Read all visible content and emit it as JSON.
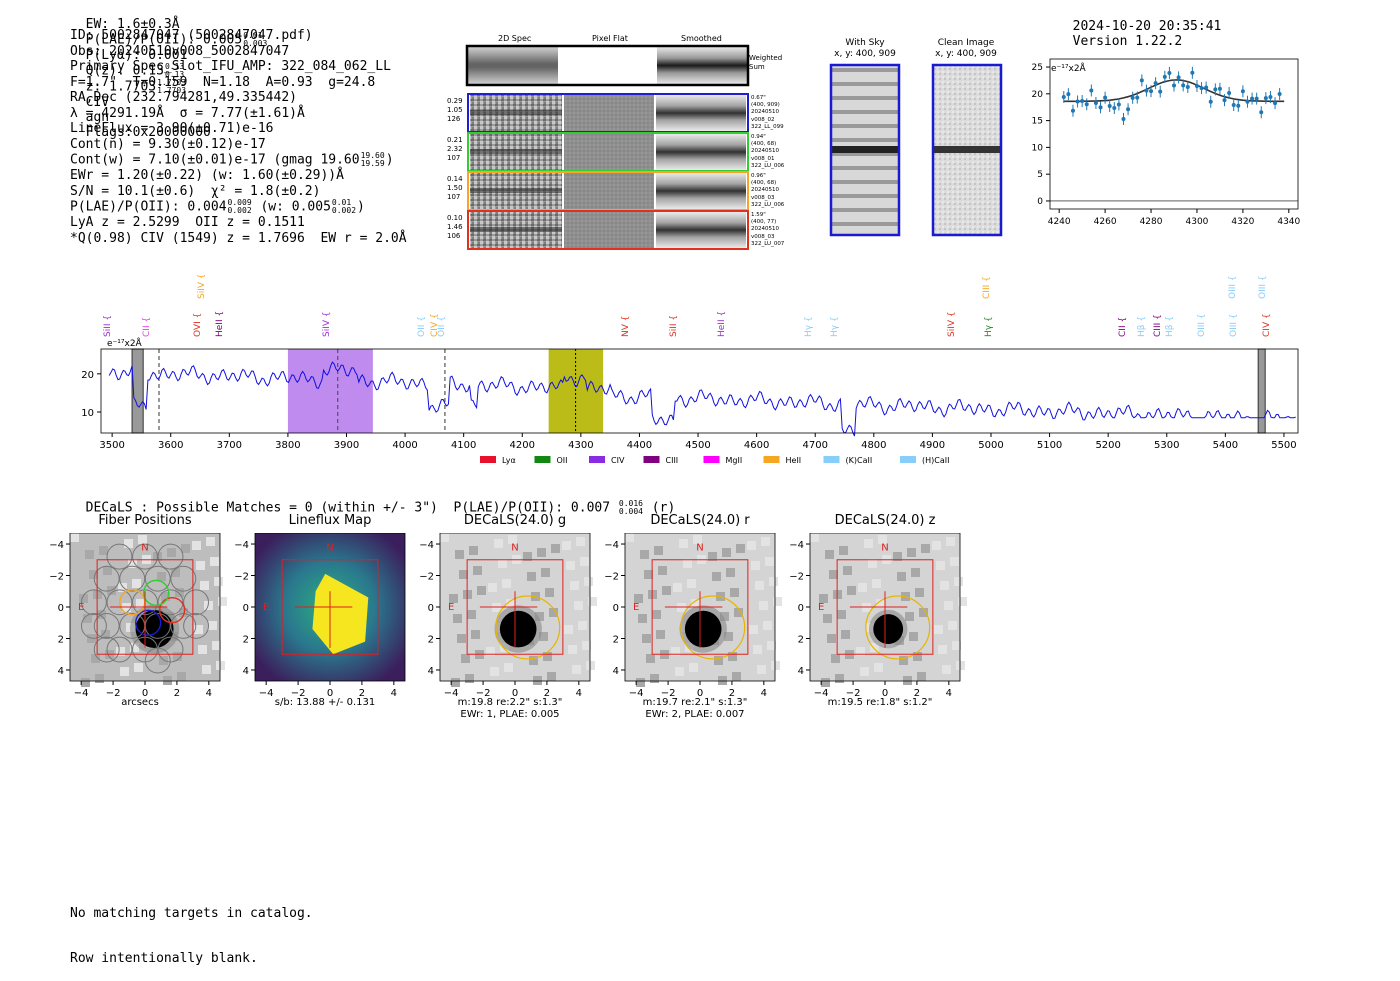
{
  "header": {
    "ew": "EW: 1.6±0.3Å",
    "plae_label": "P(LAE)/P(OII): 0.005",
    "plae_hi": "0.01",
    "plae_lo": "0.003",
    "plya": "P(Lyα): 0.001",
    "q_label": "Q(z): 0.13",
    "q_hi": "0.13",
    "q_lo": "0.13",
    "z_label": "z: 1.7703",
    "z_hi": "1.7703",
    "z_lo": "1.7703",
    "line": "CIV",
    "cls": "agn",
    "flags": "Flags:0x20000000",
    "datetime": "2024-10-20 20:35:41",
    "version": "Version 1.22.2"
  },
  "info": {
    "id": "ID: 5002847047 (5002847047.pdf)",
    "obs": "Obs: 20240510v008_5002847047",
    "slot": "Primary Spec_Slot_IFU_AMP: 322_084_062_LL",
    "params": "F=1.7\"  T=0.159  N=1.18  A=0.93  g=24.8",
    "radec": "RA,Dec (232.794281,49.335442)",
    "lambda": "λ = 4291.19Å  σ = 7.77(±1.61)Å",
    "lineflux": "LineFlux = 3.90(±0.71)e-16",
    "contn": "Cont(n) = 9.30(±0.12)e-17",
    "contw": "Cont(w) = 7.10(±0.01)e-17 (gmag 19.60",
    "contw_hi": "19.60",
    "contw_lo": "19.59",
    "contw_end": ")",
    "ewr": "EWr = 1.20(±0.22) (w: 1.60(±0.29))Å",
    "sn": "S/N = 10.1(±0.6)  χ² = 1.8(±0.2)",
    "plae2": "P(LAE)/P(OII): 0.004",
    "plae2_hi": "0.009",
    "plae2_lo": "0.002",
    "plae2_w": "(w: 0.005",
    "plae2_w_hi": "0.01",
    "plae2_w_lo": "0.002",
    "plae2_end": ")",
    "lya": "LyA z = 2.5299  OII z = 0.1511",
    "q": "*Q(0.98) CIV (1549) z = 1.7696  EW r = 2.0Å"
  },
  "stamps": {
    "col_titles": [
      "2D Spec",
      "Pixel Flat",
      "Smoothed"
    ],
    "weighted": "Weighted Sum",
    "rows": [
      {
        "left": [
          "0.29",
          "1.05",
          "126"
        ],
        "right": [
          "0.67\"",
          "(400, 909)",
          "20240510",
          "v008_02",
          "322_LL_099"
        ],
        "color": "#1f1fd0"
      },
      {
        "left": [
          "0.21",
          "2.32",
          "107"
        ],
        "right": [
          "0.94\"",
          "(400, 68)",
          "20240510",
          "v008_01",
          "322_LU_006"
        ],
        "color": "#33cc33"
      },
      {
        "left": [
          "0.14",
          "1.50",
          "107"
        ],
        "right": [
          "0.96\"",
          "(400, 68)",
          "20240510",
          "v008_03",
          "322_LU_006"
        ],
        "color": "#f5a623"
      },
      {
        "left": [
          "0.10",
          "1.46",
          "106"
        ],
        "right": [
          "1.59\"",
          "(400, 77)",
          "20240510",
          "v008_03",
          "322_LU_007"
        ],
        "color": "#e0301e"
      }
    ]
  },
  "sky": {
    "with_sky": "With Sky",
    "with_sky_xy": "x, y: 400, 909",
    "clean": "Clean Image",
    "clean_xy": "x, y: 400, 909"
  },
  "zoom_plot": {
    "unit": "e⁻¹⁷x2Å",
    "xticks": [
      "4240",
      "4260",
      "4280",
      "4300",
      "4320",
      "4340"
    ],
    "yticks": [
      "0",
      "5",
      "10",
      "15",
      "20",
      "25"
    ]
  },
  "spectrum": {
    "unit": "e⁻¹⁷x2Å",
    "xticks": [
      "3500",
      "3600",
      "3700",
      "3800",
      "3900",
      "4000",
      "4100",
      "4200",
      "4300",
      "4400",
      "4500",
      "4600",
      "4700",
      "4800",
      "4900",
      "5000",
      "5100",
      "5200",
      "5300",
      "5400",
      "5500"
    ],
    "yticks": [
      "10",
      "20"
    ],
    "line_labels": [
      {
        "text": "SiII",
        "color": "#9b30d0"
      },
      {
        "text": "CII",
        "color": "#e040e0"
      },
      {
        "text": "SiIV",
        "color": "#f5a623"
      },
      {
        "text": "OVI",
        "color": "#e0301e"
      },
      {
        "text": "HeII",
        "color": "#800080"
      },
      {
        "text": "SiIV",
        "color": "#9b30d0"
      },
      {
        "text": "OII",
        "color": "#87cefa"
      },
      {
        "text": "CIV",
        "color": "#f5a623"
      },
      {
        "text": "OII",
        "color": "#87cefa"
      },
      {
        "text": "NV",
        "color": "#e0301e"
      },
      {
        "text": "SiII",
        "color": "#e0301e"
      },
      {
        "text": "HeII",
        "color": "#9b30d0"
      },
      {
        "text": "Hγ",
        "color": "#87cefa"
      },
      {
        "text": "Hγ",
        "color": "#87cefa"
      },
      {
        "text": "SiIV",
        "color": "#e0301e"
      },
      {
        "text": "CIII",
        "color": "#f5a623"
      },
      {
        "text": "Hγ",
        "color": "#228b22"
      },
      {
        "text": "CII",
        "color": "#800080"
      },
      {
        "text": "Hβ",
        "color": "#87cefa"
      },
      {
        "text": "CIII",
        "color": "#800080"
      },
      {
        "text": "Hβ",
        "color": "#87cefa"
      },
      {
        "text": "OIII",
        "color": "#87cefa"
      },
      {
        "text": "OIII",
        "color": "#87cefa"
      },
      {
        "text": "OIII",
        "color": "#87cefa"
      },
      {
        "text": "OIII",
        "color": "#87cefa"
      },
      {
        "text": "CIV",
        "color": "#e0301e"
      }
    ],
    "legend": [
      {
        "label": "Lyα",
        "color": "#e8102a"
      },
      {
        "label": "OII",
        "color": "#118811"
      },
      {
        "label": "CIV",
        "color": "#8a2be2"
      },
      {
        "label": "CIII",
        "color": "#800080"
      },
      {
        "label": "MgII",
        "color": "#ff00ff"
      },
      {
        "label": "HeII",
        "color": "#f5a623"
      },
      {
        "label": "(K)CaII",
        "color": "#87cefa"
      },
      {
        "label": "(H)CaII",
        "color": "#87cefa"
      }
    ]
  },
  "decals": {
    "title": "DECaLS : Possible Matches = 0 (within +/- 3\")  P(LAE)/P(OII): 0.007",
    "hi": "0.016",
    "lo": "0.004",
    "end": "(r)"
  },
  "panels": [
    {
      "title": "Fiber Positions",
      "caption1": "arcsecs",
      "caption2": ""
    },
    {
      "title": "Lineflux Map",
      "caption1": "s/b: 13.88 +/- 0.131",
      "caption2": ""
    },
    {
      "title": "DECaLS(24.0) g",
      "caption1": "m:19.8  re:2.2\"  s:1.3\"",
      "caption2": "EWr: 1, PLAE: 0.005"
    },
    {
      "title": "DECaLS(24.0) r",
      "caption1": "m:19.7  re:2.1\"  s:1.3\"",
      "caption2": "EWr: 2, PLAE: 0.007"
    },
    {
      "title": "DECaLS(24.0) z",
      "caption1": "m:19.5  re:1.8\"  s:1.2\"",
      "caption2": ""
    }
  ],
  "panel_ticks": [
    "−4",
    "−2",
    "0",
    "2",
    "4"
  ],
  "panel_compass": {
    "n": "N",
    "e": "E"
  },
  "footer": {
    "line1": "No matching targets in catalog.",
    "line2": "Row intentionally blank."
  }
}
